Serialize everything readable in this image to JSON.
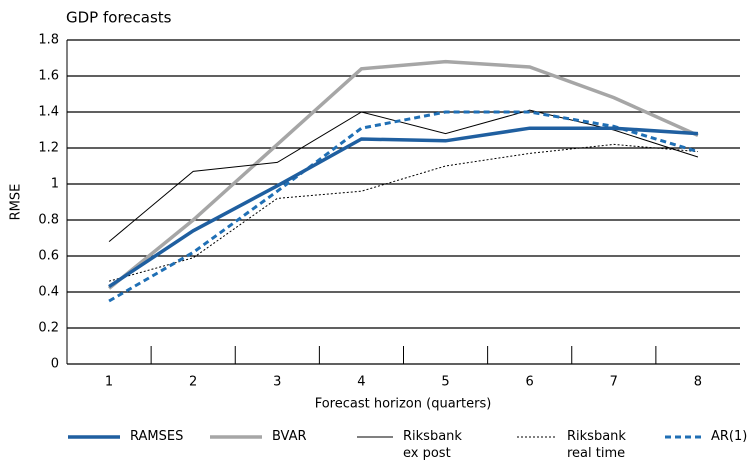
{
  "chart_data": {
    "type": "line",
    "title": "GDP forecasts",
    "y_label": "RMSE",
    "x_label": "Forecast horizon (quarters)",
    "categories": [
      "1",
      "2",
      "3",
      "4",
      "5",
      "6",
      "7",
      "8"
    ],
    "series": [
      {
        "name": "RAMSES",
        "color": "#1f5fa0",
        "line_width": 3.5,
        "line_style": "solid",
        "values": [
          0.43,
          0.74,
          0.99,
          1.25,
          1.24,
          1.31,
          1.31,
          1.28
        ]
      },
      {
        "name": "BVAR",
        "color": "#a6a6a6",
        "line_width": 3.5,
        "line_style": "solid",
        "values": [
          0.42,
          0.8,
          1.22,
          1.64,
          1.68,
          1.65,
          1.48,
          1.27
        ]
      },
      {
        "name": "Riksbank ex post",
        "color": "#000000",
        "line_width": 1,
        "line_style": "solid",
        "values": [
          0.68,
          1.07,
          1.12,
          1.4,
          1.28,
          1.41,
          1.3,
          1.15
        ]
      },
      {
        "name": "Riksbank real time",
        "color": "#000000",
        "line_width": 1,
        "line_style": "dotted",
        "values": [
          0.46,
          0.59,
          0.92,
          0.96,
          1.1,
          1.17,
          1.22,
          1.18
        ]
      },
      {
        "name": "AR(1)",
        "color": "#1f6fb5",
        "line_width": 3,
        "line_style": "dotted",
        "values": [
          0.35,
          0.62,
          0.96,
          1.31,
          1.4,
          1.4,
          1.32,
          1.18
        ]
      }
    ],
    "ylim": [
      0,
      1.8
    ],
    "yticks": [
      0,
      0.2,
      0.4,
      0.6,
      0.8,
      1,
      1.2,
      1.4,
      1.6,
      1.8
    ],
    "grid": true
  }
}
